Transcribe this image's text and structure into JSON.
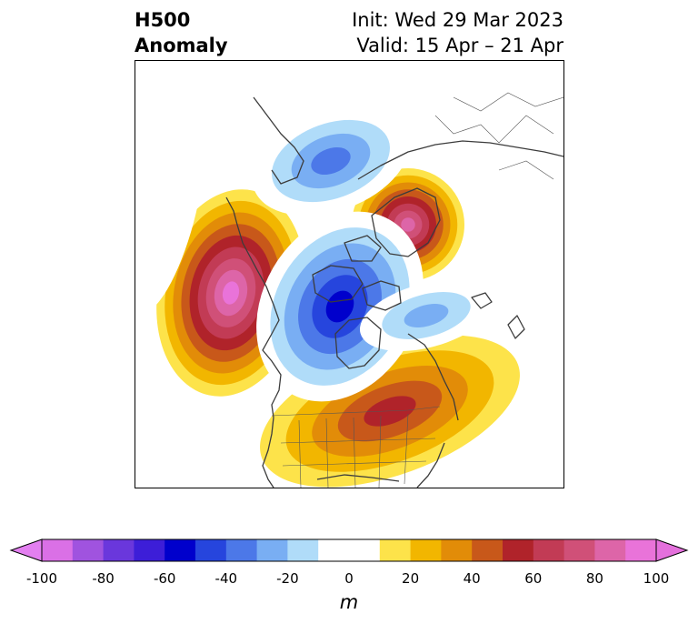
{
  "header": {
    "title_line1": "H500",
    "title_line2": "Anomaly",
    "init_text": "Init: Wed 29 Mar 2023",
    "valid_text": "Valid: 15 Apr – 21 Apr"
  },
  "map": {
    "variable": "500 hPa geopotential height anomaly",
    "features": [
      {
        "name": "north-pacific-ridge",
        "sign": "positive",
        "peak": 90
      },
      {
        "name": "arctic-ridge",
        "sign": "positive",
        "peak": 80
      },
      {
        "name": "eastern-us-ridge",
        "sign": "positive",
        "peak": 50
      },
      {
        "name": "canada-trough",
        "sign": "negative",
        "peak": -60
      },
      {
        "name": "polar-trough",
        "sign": "negative",
        "peak": -40
      },
      {
        "name": "north-atlantic-trough",
        "sign": "negative",
        "peak": -30
      },
      {
        "name": "west-pacific-trough",
        "sign": "negative",
        "peak": -10
      }
    ]
  },
  "colorbar": {
    "ticks": [
      "-100",
      "-80",
      "-60",
      "-40",
      "-20",
      "0",
      "20",
      "40",
      "60",
      "80",
      "100"
    ],
    "unit": "m",
    "min": -100,
    "max": 100,
    "colors": [
      "#da70e6",
      "#a053df",
      "#6a37dc",
      "#3d1ed8",
      "#0000cc",
      "#2645dd",
      "#4c78e8",
      "#79aef3",
      "#b0dcf9",
      "#ffffff",
      "#ffffff",
      "#fde34a",
      "#f2b600",
      "#e28c08",
      "#c8581a",
      "#b0232a",
      "#c23b55",
      "#d05078",
      "#dd65a8",
      "#e973d9"
    ],
    "under_color": "#e37ff0",
    "over_color": "#e470dc"
  }
}
